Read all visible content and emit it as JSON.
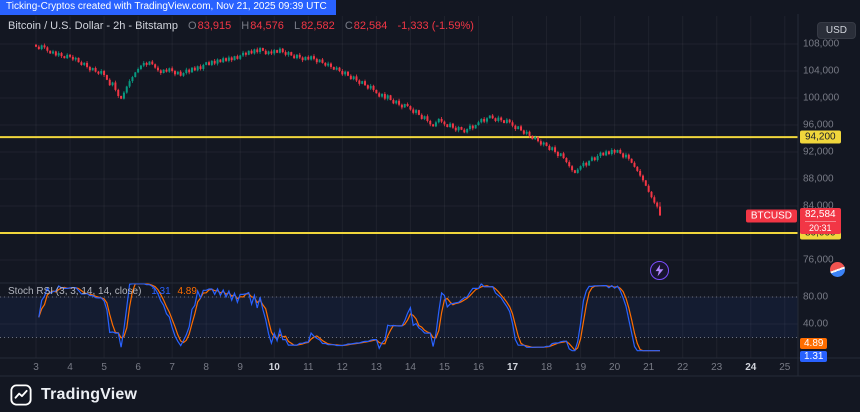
{
  "banner": {
    "text": "Ticking-Cryptos created with TradingView.com, Nov 21, 2025 09:39 UTC"
  },
  "header": {
    "title": "Bitcoin / U.S. Dollar - 2h - Bitstamp",
    "ohlc": {
      "o_label": "O",
      "o": "83,915",
      "h_label": "H",
      "h": "84,576",
      "l_label": "L",
      "l": "82,582",
      "c_label": "C",
      "c": "82,584",
      "change": "-1,333 (-1.59%)"
    },
    "currency_button": "USD"
  },
  "price_axis": {
    "labels": [
      "108,000",
      "104,000",
      "100,000",
      "96,000",
      "92,000",
      "88,000",
      "84,000",
      "76,000"
    ],
    "label_prices": [
      108000,
      104000,
      100000,
      96000,
      92000,
      88000,
      84000,
      76000
    ],
    "line_badges": [
      {
        "label": "94,200",
        "price": 94200
      },
      {
        "label": "80,000",
        "price": 80000
      }
    ],
    "last_price": {
      "symbol": "BTCUSD",
      "label": "82,584",
      "price": 82584,
      "countdown": "20:31"
    }
  },
  "chart_data": [
    {
      "type": "candlestick",
      "symbol": "BTCUSD",
      "title": "Bitcoin / U.S. Dollar",
      "interval": "2h",
      "exchange": "Bitstamp",
      "date_range": "Nov 3 - Nov 21, 2025 (UTC)",
      "price_range": [
        76000,
        108000
      ],
      "grid_step": 4000,
      "horizontal_lines": [
        94200,
        80000
      ],
      "up_color": "#089981",
      "down_color": "#f23645",
      "first_open": 107900,
      "closes": [
        107600,
        107250,
        107800,
        107500,
        107000,
        106600,
        106900,
        106300,
        106650,
        106200,
        105900,
        106400,
        106100,
        105700,
        105950,
        105300,
        104900,
        105200,
        104600,
        104100,
        104450,
        103900,
        103600,
        104000,
        103400,
        102700,
        101900,
        102300,
        101200,
        100300,
        99900,
        100800,
        101700,
        102500,
        103100,
        103800,
        104300,
        104800,
        105200,
        104900,
        105400,
        105000,
        104500,
        104100,
        103700,
        104200,
        103900,
        104400,
        104000,
        103500,
        103900,
        103300,
        103700,
        104200,
        103800,
        104500,
        104100,
        104700,
        104300,
        104900,
        105300,
        104900,
        105500,
        105100,
        105700,
        105300,
        105900,
        105500,
        106000,
        105600,
        106200,
        105800,
        106300,
        106700,
        106400,
        107000,
        106600,
        107200,
        106800,
        107400,
        107000,
        106500,
        106900,
        106600,
        107100,
        106700,
        107300,
        106800,
        106400,
        106800,
        106300,
        105900,
        106400,
        106000,
        105600,
        106100,
        105700,
        106200,
        105800,
        105300,
        105700,
        105200,
        104800,
        105100,
        104600,
        104200,
        104500,
        104000,
        103500,
        103900,
        103300,
        102800,
        103200,
        102600,
        102100,
        102500,
        101900,
        101400,
        101800,
        101200,
        100700,
        100200,
        100600,
        99900,
        100400,
        99700,
        99200,
        99600,
        99000,
        98600,
        99100,
        98800,
        98300,
        97800,
        98200,
        97500,
        96900,
        97300,
        96600,
        96100,
        95800,
        96400,
        96900,
        96500,
        96100,
        95700,
        96200,
        95600,
        95200,
        95700,
        95300,
        94900,
        95400,
        95900,
        95500,
        96000,
        96400,
        96900,
        96500,
        97000,
        97400,
        97000,
        96600,
        97100,
        96700,
        96300,
        96800,
        96400,
        95900,
        95400,
        95800,
        95200,
        94700,
        95000,
        94400,
        93900,
        94200,
        93600,
        93100,
        93400,
        92900,
        92300,
        92700,
        92000,
        91400,
        91800,
        91100,
        90500,
        89900,
        89300,
        88900,
        89400,
        89900,
        90400,
        90000,
        90700,
        91200,
        90800,
        91400,
        91900,
        91500,
        92100,
        91700,
        92300,
        91900,
        92300,
        91800,
        91200,
        91600,
        91000,
        90400,
        89800,
        89200,
        88500,
        87800,
        87000,
        86100,
        85300,
        84500,
        83915,
        82584
      ],
      "last_candle": {
        "open": 83915,
        "high": 84576,
        "low": 82582,
        "close": 82584
      }
    },
    {
      "type": "line",
      "name": "Stoch RSI",
      "title": "Stoch RSI (3, 3, 14, 14, close)",
      "params": [
        3,
        3,
        14,
        14
      ],
      "source": "close",
      "range": [
        0,
        100
      ],
      "bands": [
        80,
        20
      ],
      "grid_values": [
        80,
        40
      ],
      "grid_labels": [
        "80.00",
        "40.00"
      ],
      "series": [
        {
          "name": "K",
          "color": "#2962ff",
          "value": "1.31"
        },
        {
          "name": "D",
          "color": "#ff6d00",
          "value": "4.89"
        }
      ]
    }
  ],
  "time_axis": {
    "labels": [
      "3",
      "4",
      "5",
      "6",
      "7",
      "8",
      "9",
      "10",
      "11",
      "12",
      "13",
      "14",
      "15",
      "16",
      "17",
      "18",
      "19",
      "20",
      "21",
      "22",
      "23",
      "24",
      "25"
    ],
    "bold": [
      "10",
      "17",
      "24"
    ]
  },
  "footer": {
    "brand": "TradingView"
  },
  "colors": {
    "background": "#131722",
    "grid": "rgba(134,137,147,0.10)",
    "separator": "#262b38",
    "text_muted": "#787b86",
    "text_bright": "#d1d4dc",
    "up": "#089981",
    "down": "#f23645",
    "accent_yellow": "#f0d63c",
    "accent_blue": "#2962ff",
    "accent_orange": "#ff6d00",
    "banner_bg": "#2962ff"
  }
}
